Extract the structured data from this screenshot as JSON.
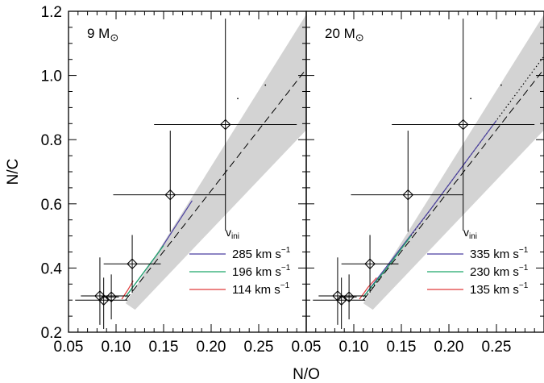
{
  "chart_data": [
    {
      "type": "line",
      "panel_label": "9 M",
      "panel_label_symbol": "⊙",
      "xlabel": "N/O",
      "ylabel": "N/C",
      "xlim": [
        0.05,
        0.3
      ],
      "ylim": [
        0.2,
        1.2
      ],
      "x_ticks": [
        "0.05",
        "0.10",
        "0.15",
        "0.20",
        "0.25"
      ],
      "y_ticks": [
        "0.2",
        "0.4",
        "0.6",
        "0.8",
        "1.0",
        "1.2"
      ],
      "band_color": "#d3d3d3",
      "band": {
        "x": [
          0.11,
          0.3,
          0.3,
          0.12
        ],
        "y": [
          0.29,
          1.19,
          0.83,
          0.27
        ]
      },
      "dashed_line": {
        "x": [
          0.11,
          0.3
        ],
        "y": [
          0.3,
          1.02
        ]
      },
      "points": [
        {
          "x": 0.083,
          "y": 0.313,
          "xerr": [
            0.02,
            0.03
          ],
          "yerr": [
            0.09,
            0.12
          ]
        },
        {
          "x": 0.087,
          "y": 0.3,
          "xerr": [
            0.03,
            0.025
          ],
          "yerr": [
            0.09,
            0.07
          ]
        },
        {
          "x": 0.095,
          "y": 0.31,
          "xerr": [
            0.01,
            0.008
          ],
          "yerr": [
            0.07,
            0.07
          ]
        },
        {
          "x": 0.117,
          "y": 0.413,
          "xerr": [
            0.03,
            0.03
          ],
          "yerr": [
            0.09,
            0.09
          ]
        },
        {
          "x": 0.157,
          "y": 0.628,
          "xerr": [
            0.06,
            0.058
          ],
          "yerr": [
            0.115,
            0.2
          ]
        },
        {
          "x": 0.215,
          "y": 0.847,
          "xerr": [
            0.075,
            0.075
          ],
          "yerr": [
            0.33,
            0.33
          ]
        }
      ],
      "series": [
        {
          "name": "285 km s",
          "color": "#4a3fa0",
          "x": [
            0.11,
            0.145,
            0.18
          ],
          "y": [
            0.31,
            0.45,
            0.61
          ]
        },
        {
          "name": "196 km s",
          "color": "#1fa86a",
          "x": [
            0.11,
            0.13,
            0.15
          ],
          "y": [
            0.31,
            0.39,
            0.47
          ]
        },
        {
          "name": "114 km s",
          "color": "#e03a3a",
          "x": [
            0.106,
            0.112,
            0.118
          ],
          "y": [
            0.303,
            0.33,
            0.36
          ]
        }
      ],
      "legend": {
        "title": "v",
        "title_sub": "ini",
        "unit_sup": "−1",
        "placement": "bottom-right"
      },
      "stray_dots": [
        {
          "x": 0.228,
          "y": 0.928
        },
        {
          "x": 0.257,
          "y": 0.97
        }
      ]
    },
    {
      "type": "line",
      "panel_label": "20 M",
      "panel_label_symbol": "⊙",
      "xlabel": "N/O",
      "ylabel": "",
      "xlim": [
        0.05,
        0.3
      ],
      "ylim": [
        0.2,
        1.2
      ],
      "x_ticks": [
        "0.05",
        "0.10",
        "0.15",
        "0.20",
        "0.25"
      ],
      "y_ticks": [],
      "band_color": "#d3d3d3",
      "band": {
        "x": [
          0.11,
          0.3,
          0.3,
          0.12
        ],
        "y": [
          0.29,
          1.19,
          0.83,
          0.27
        ]
      },
      "dashed_line": {
        "x": [
          0.11,
          0.3
        ],
        "y": [
          0.3,
          1.02
        ]
      },
      "dotted_line": {
        "x": [
          0.11,
          0.3
        ],
        "y": [
          0.3,
          1.06
        ]
      },
      "points": [
        {
          "x": 0.083,
          "y": 0.313,
          "xerr": [
            0.02,
            0.03
          ],
          "yerr": [
            0.09,
            0.12
          ]
        },
        {
          "x": 0.087,
          "y": 0.3,
          "xerr": [
            0.03,
            0.025
          ],
          "yerr": [
            0.09,
            0.07
          ]
        },
        {
          "x": 0.095,
          "y": 0.31,
          "xerr": [
            0.01,
            0.008
          ],
          "yerr": [
            0.07,
            0.07
          ]
        },
        {
          "x": 0.117,
          "y": 0.413,
          "xerr": [
            0.03,
            0.03
          ],
          "yerr": [
            0.09,
            0.09
          ]
        },
        {
          "x": 0.157,
          "y": 0.628,
          "xerr": [
            0.06,
            0.058
          ],
          "yerr": [
            0.115,
            0.2
          ]
        },
        {
          "x": 0.215,
          "y": 0.847,
          "xerr": [
            0.075,
            0.075
          ],
          "yerr": [
            0.33,
            0.33
          ]
        }
      ],
      "series": [
        {
          "name": "335 km s",
          "color": "#4a3fa0",
          "x": [
            0.11,
            0.18,
            0.25
          ],
          "y": [
            0.31,
            0.58,
            0.86
          ]
        },
        {
          "name": "230 km s",
          "color": "#1fa86a",
          "x": [
            0.11,
            0.135,
            0.16
          ],
          "y": [
            0.31,
            0.4,
            0.5
          ]
        },
        {
          "name": "135 km s",
          "color": "#e03a3a",
          "x": [
            0.106,
            0.115,
            0.124
          ],
          "y": [
            0.303,
            0.34,
            0.37
          ]
        }
      ],
      "legend": {
        "title": "v",
        "title_sub": "ini",
        "unit_sup": "−1",
        "placement": "bottom-right"
      },
      "stray_dots": [
        {
          "x": 0.223,
          "y": 0.928
        },
        {
          "x": 0.255,
          "y": 0.97
        }
      ]
    }
  ]
}
